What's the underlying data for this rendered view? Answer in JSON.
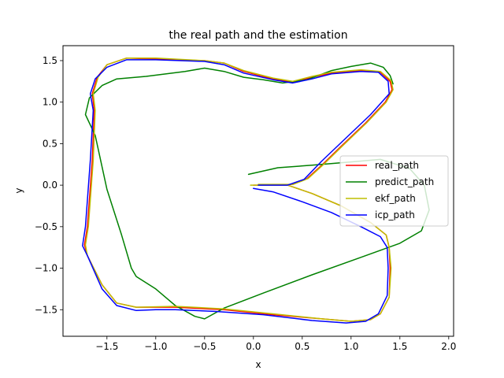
{
  "chart_data": {
    "type": "line",
    "title": "the real path and the estimation",
    "xlabel": "x",
    "ylabel": "y",
    "xlim": [
      -1.95,
      2.05
    ],
    "ylim": [
      -1.82,
      1.68
    ],
    "xticks": [
      -1.5,
      -1.0,
      -0.5,
      0.0,
      0.5,
      1.0,
      1.5,
      2.0
    ],
    "xtick_labels": [
      "−1.5",
      "−1.0",
      "−0.5",
      "0.0",
      "0.5",
      "1.0",
      "1.5",
      "2.0"
    ],
    "yticks": [
      -1.5,
      -1.0,
      -0.5,
      0.0,
      0.5,
      1.0,
      1.5
    ],
    "ytick_labels": [
      "−1.5",
      "−1.0",
      "−0.5",
      "0.0",
      "0.5",
      "1.0",
      "1.5"
    ],
    "grid": false,
    "legend_position": "center-right",
    "series": [
      {
        "name": "real_path",
        "color": "#ff0000",
        "points": [
          [
            0,
            0
          ],
          [
            0.35,
            0.0
          ],
          [
            0.6,
            -0.1
          ],
          [
            0.9,
            -0.25
          ],
          [
            1.2,
            -0.45
          ],
          [
            1.36,
            -0.6
          ],
          [
            1.39,
            -0.75
          ],
          [
            1.4,
            -1.0
          ],
          [
            1.39,
            -1.35
          ],
          [
            1.3,
            -1.55
          ],
          [
            1.2,
            -1.62
          ],
          [
            1.0,
            -1.64
          ],
          [
            0.7,
            -1.61
          ],
          [
            0.2,
            -1.56
          ],
          [
            -0.3,
            -1.5
          ],
          [
            -0.8,
            -1.47
          ],
          [
            -1.2,
            -1.47
          ],
          [
            -1.4,
            -1.42
          ],
          [
            -1.55,
            -1.2
          ],
          [
            -1.7,
            -0.85
          ],
          [
            -1.73,
            -0.72
          ],
          [
            -1.7,
            -0.5
          ],
          [
            -1.65,
            0.3
          ],
          [
            -1.63,
            0.9
          ],
          [
            -1.65,
            1.1
          ],
          [
            -1.6,
            1.3
          ],
          [
            -1.5,
            1.45
          ],
          [
            -1.3,
            1.53
          ],
          [
            -1.0,
            1.52
          ],
          [
            -0.5,
            1.5
          ],
          [
            -0.3,
            1.47
          ],
          [
            -0.1,
            1.37
          ],
          [
            0.2,
            1.28
          ],
          [
            0.4,
            1.24
          ],
          [
            0.6,
            1.3
          ],
          [
            0.8,
            1.35
          ],
          [
            1.1,
            1.38
          ],
          [
            1.3,
            1.36
          ],
          [
            1.4,
            1.25
          ],
          [
            1.42,
            1.15
          ],
          [
            1.35,
            1.0
          ],
          [
            1.15,
            0.75
          ],
          [
            0.9,
            0.47
          ],
          [
            0.7,
            0.24
          ],
          [
            0.55,
            0.08
          ],
          [
            0.4,
            0.01
          ],
          [
            0.05,
            0.0
          ]
        ]
      },
      {
        "name": "predict_path",
        "color": "#008000",
        "points": [
          [
            -0.05,
            0.13
          ],
          [
            0.25,
            0.21
          ],
          [
            0.6,
            0.24
          ],
          [
            1.0,
            0.28
          ],
          [
            1.3,
            0.31
          ],
          [
            1.6,
            0.2
          ],
          [
            1.75,
            0.0
          ],
          [
            1.8,
            -0.3
          ],
          [
            1.72,
            -0.55
          ],
          [
            1.5,
            -0.7
          ],
          [
            1.1,
            -0.87
          ],
          [
            0.6,
            -1.08
          ],
          [
            0.1,
            -1.3
          ],
          [
            -0.3,
            -1.48
          ],
          [
            -0.5,
            -1.61
          ],
          [
            -0.6,
            -1.58
          ],
          [
            -0.8,
            -1.45
          ],
          [
            -1.0,
            -1.25
          ],
          [
            -1.2,
            -1.1
          ],
          [
            -1.25,
            -1.0
          ],
          [
            -1.35,
            -0.6
          ],
          [
            -1.5,
            -0.05
          ],
          [
            -1.62,
            0.6
          ],
          [
            -1.72,
            0.85
          ],
          [
            -1.68,
            1.05
          ],
          [
            -1.55,
            1.2
          ],
          [
            -1.4,
            1.28
          ],
          [
            -1.1,
            1.31
          ],
          [
            -0.7,
            1.37
          ],
          [
            -0.5,
            1.41
          ],
          [
            -0.3,
            1.37
          ],
          [
            -0.1,
            1.3
          ],
          [
            0.1,
            1.27
          ],
          [
            0.3,
            1.23
          ],
          [
            0.55,
            1.27
          ],
          [
            0.8,
            1.38
          ],
          [
            1.0,
            1.43
          ],
          [
            1.2,
            1.47
          ],
          [
            1.33,
            1.42
          ],
          [
            1.4,
            1.32
          ],
          [
            1.43,
            1.22
          ]
        ]
      },
      {
        "name": "ekf_path",
        "color": "#bfbf00",
        "points": [
          [
            -0.03,
            0.0
          ],
          [
            0.35,
            0.0
          ],
          [
            0.6,
            -0.1
          ],
          [
            0.9,
            -0.25
          ],
          [
            1.2,
            -0.45
          ],
          [
            1.36,
            -0.6
          ],
          [
            1.39,
            -0.75
          ],
          [
            1.41,
            -1.0
          ],
          [
            1.39,
            -1.35
          ],
          [
            1.3,
            -1.55
          ],
          [
            1.2,
            -1.62
          ],
          [
            1.0,
            -1.64
          ],
          [
            0.7,
            -1.61
          ],
          [
            0.2,
            -1.55
          ],
          [
            -0.3,
            -1.49
          ],
          [
            -0.8,
            -1.46
          ],
          [
            -1.2,
            -1.47
          ],
          [
            -1.4,
            -1.42
          ],
          [
            -1.55,
            -1.2
          ],
          [
            -1.7,
            -0.85
          ],
          [
            -1.72,
            -0.72
          ],
          [
            -1.69,
            -0.5
          ],
          [
            -1.64,
            0.3
          ],
          [
            -1.62,
            0.9
          ],
          [
            -1.64,
            1.1
          ],
          [
            -1.59,
            1.3
          ],
          [
            -1.5,
            1.45
          ],
          [
            -1.3,
            1.53
          ],
          [
            -1.0,
            1.53
          ],
          [
            -0.5,
            1.5
          ],
          [
            -0.3,
            1.47
          ],
          [
            -0.1,
            1.38
          ],
          [
            0.2,
            1.29
          ],
          [
            0.4,
            1.25
          ],
          [
            0.6,
            1.31
          ],
          [
            0.8,
            1.36
          ],
          [
            1.1,
            1.39
          ],
          [
            1.3,
            1.37
          ],
          [
            1.41,
            1.26
          ],
          [
            1.43,
            1.15
          ],
          [
            1.36,
            1.0
          ],
          [
            1.16,
            0.75
          ],
          [
            0.91,
            0.47
          ],
          [
            0.71,
            0.24
          ],
          [
            0.56,
            0.08
          ],
          [
            0.41,
            0.01
          ],
          [
            0.05,
            0.01
          ]
        ]
      },
      {
        "name": "icp_path",
        "color": "#0000ff",
        "points": [
          [
            0.0,
            -0.04
          ],
          [
            0.2,
            -0.08
          ],
          [
            0.5,
            -0.2
          ],
          [
            0.8,
            -0.33
          ],
          [
            1.1,
            -0.5
          ],
          [
            1.3,
            -0.62
          ],
          [
            1.37,
            -0.75
          ],
          [
            1.38,
            -1.0
          ],
          [
            1.37,
            -1.33
          ],
          [
            1.28,
            -1.55
          ],
          [
            1.15,
            -1.64
          ],
          [
            0.95,
            -1.66
          ],
          [
            0.6,
            -1.63
          ],
          [
            0.1,
            -1.56
          ],
          [
            -0.4,
            -1.52
          ],
          [
            -0.8,
            -1.5
          ],
          [
            -1.0,
            -1.5
          ],
          [
            -1.2,
            -1.51
          ],
          [
            -1.4,
            -1.45
          ],
          [
            -1.55,
            -1.25
          ],
          [
            -1.7,
            -0.85
          ],
          [
            -1.75,
            -0.73
          ],
          [
            -1.72,
            -0.5
          ],
          [
            -1.67,
            0.3
          ],
          [
            -1.64,
            0.9
          ],
          [
            -1.67,
            1.1
          ],
          [
            -1.62,
            1.28
          ],
          [
            -1.5,
            1.42
          ],
          [
            -1.3,
            1.51
          ],
          [
            -1.0,
            1.51
          ],
          [
            -0.5,
            1.49
          ],
          [
            -0.3,
            1.45
          ],
          [
            -0.1,
            1.35
          ],
          [
            0.2,
            1.27
          ],
          [
            0.4,
            1.23
          ],
          [
            0.6,
            1.28
          ],
          [
            0.8,
            1.34
          ],
          [
            1.1,
            1.37
          ],
          [
            1.28,
            1.36
          ],
          [
            1.38,
            1.25
          ],
          [
            1.39,
            1.1
          ],
          [
            1.2,
            0.85
          ],
          [
            0.95,
            0.57
          ],
          [
            0.7,
            0.29
          ],
          [
            0.52,
            0.07
          ],
          [
            0.35,
            0.0
          ],
          [
            0.05,
            0.0
          ]
        ]
      }
    ]
  }
}
